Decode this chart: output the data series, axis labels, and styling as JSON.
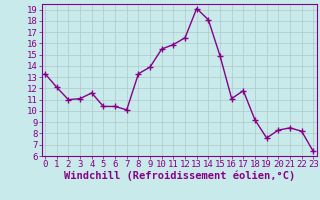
{
  "x": [
    0,
    1,
    2,
    3,
    4,
    5,
    6,
    7,
    8,
    9,
    10,
    11,
    12,
    13,
    14,
    15,
    16,
    17,
    18,
    19,
    20,
    21,
    22,
    23
  ],
  "y": [
    13.3,
    12.1,
    11.0,
    11.1,
    11.6,
    10.4,
    10.4,
    10.1,
    13.3,
    13.9,
    15.5,
    15.9,
    16.5,
    19.1,
    18.1,
    14.9,
    11.1,
    11.8,
    9.2,
    7.6,
    8.3,
    8.5,
    8.2,
    6.4
  ],
  "line_color": "#880088",
  "marker": "+",
  "marker_size": 4,
  "marker_lw": 1.0,
  "line_width": 1.0,
  "bg_color": "#c8eaea",
  "grid_color": "#b0c8c8",
  "xlabel": "Windchill (Refroidissement éolien,°C)",
  "xlabel_color": "#880088",
  "tick_color": "#880088",
  "spine_color": "#880088",
  "ylim": [
    6,
    19.5
  ],
  "xlim": [
    -0.3,
    23.3
  ],
  "yticks": [
    6,
    7,
    8,
    9,
    10,
    11,
    12,
    13,
    14,
    15,
    16,
    17,
    18,
    19
  ],
  "xticks": [
    0,
    1,
    2,
    3,
    4,
    5,
    6,
    7,
    8,
    9,
    10,
    11,
    12,
    13,
    14,
    15,
    16,
    17,
    18,
    19,
    20,
    21,
    22,
    23
  ],
  "tick_fontsize": 6.5,
  "xlabel_fontsize": 7.5
}
